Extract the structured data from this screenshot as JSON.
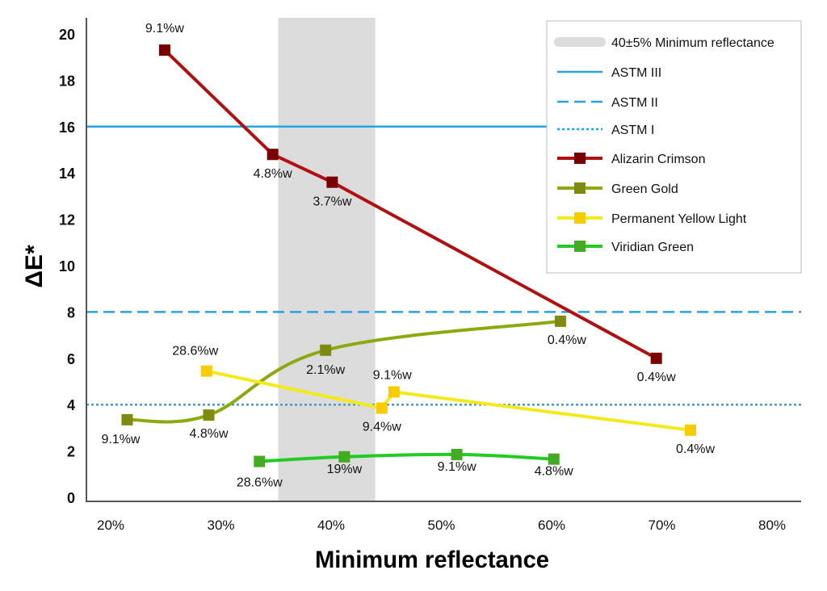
{
  "chart_data": {
    "type": "line",
    "title": "",
    "xlabel": "Minimum reflectance",
    "ylabel": "ΔE*",
    "xlim": [
      18,
      83
    ],
    "ylim": [
      0,
      20.5
    ],
    "x_ticks": [
      20,
      30,
      40,
      50,
      60,
      70,
      80
    ],
    "x_tick_labels": [
      "20%",
      "30%",
      "40%",
      "50%",
      "60%",
      "70%",
      "80%"
    ],
    "y_ticks": [
      0,
      2,
      4,
      6,
      8,
      10,
      12,
      14,
      16,
      18,
      20
    ],
    "y_tick_labels": [
      "0",
      "2",
      "4",
      "6",
      "8",
      "10",
      "12",
      "14",
      "16",
      "18",
      "20"
    ],
    "grid": false,
    "legend_placement": "top-right",
    "band": {
      "name": "40±5% Minimum reflectance",
      "x_range": [
        35.2,
        44.0
      ],
      "color": "#dcdcdc"
    },
    "reference_lines": [
      {
        "name": "ASTM III",
        "y": 16,
        "style": "solid",
        "color": "#29a3dd"
      },
      {
        "name": "ASTM II",
        "y": 8,
        "style": "dashed",
        "color": "#29a3dd"
      },
      {
        "name": "ASTM I",
        "y": 4,
        "style": "dotted",
        "color": "#29a3dd"
      }
    ],
    "series": [
      {
        "name": "Alizarin Crimson",
        "color": "#b01010",
        "marker_color": "#7a0000",
        "smooth": false,
        "x": [
          24.9,
          34.7,
          40.1,
          69.5
        ],
        "y": [
          19.3,
          14.8,
          13.6,
          6.0
        ],
        "labels": [
          "9.1%w",
          "4.8%w",
          "3.7%w",
          "0.4%w"
        ]
      },
      {
        "name": "Green Gold",
        "color": "#8aaa10",
        "marker_color": "#7f8a10",
        "smooth": true,
        "x": [
          21.5,
          28.9,
          39.5,
          60.8
        ],
        "y": [
          3.35,
          3.55,
          6.35,
          7.6
        ],
        "labels": [
          "9.1%w",
          "4.8%w",
          "2.1%w",
          "0.4%w"
        ]
      },
      {
        "name": "Permanent Yellow Light",
        "color": "#f2ea1a",
        "marker_color": "#f7cc00",
        "smooth": false,
        "x": [
          28.7,
          44.6,
          45.7,
          72.6
        ],
        "y": [
          5.45,
          3.85,
          4.55,
          2.9
        ],
        "labels": [
          "28.6%w",
          "9.4%w",
          "9.1%w",
          "0.4%w"
        ]
      },
      {
        "name": "Viridian Green",
        "color": "#22cc22",
        "marker_color": "#44aa22",
        "smooth": true,
        "x": [
          33.5,
          41.2,
          51.4,
          60.2
        ],
        "y": [
          1.55,
          1.75,
          1.85,
          1.65
        ],
        "labels": [
          "28.6%w",
          "19%w",
          "9.1%w",
          "4.8%w"
        ]
      }
    ]
  }
}
